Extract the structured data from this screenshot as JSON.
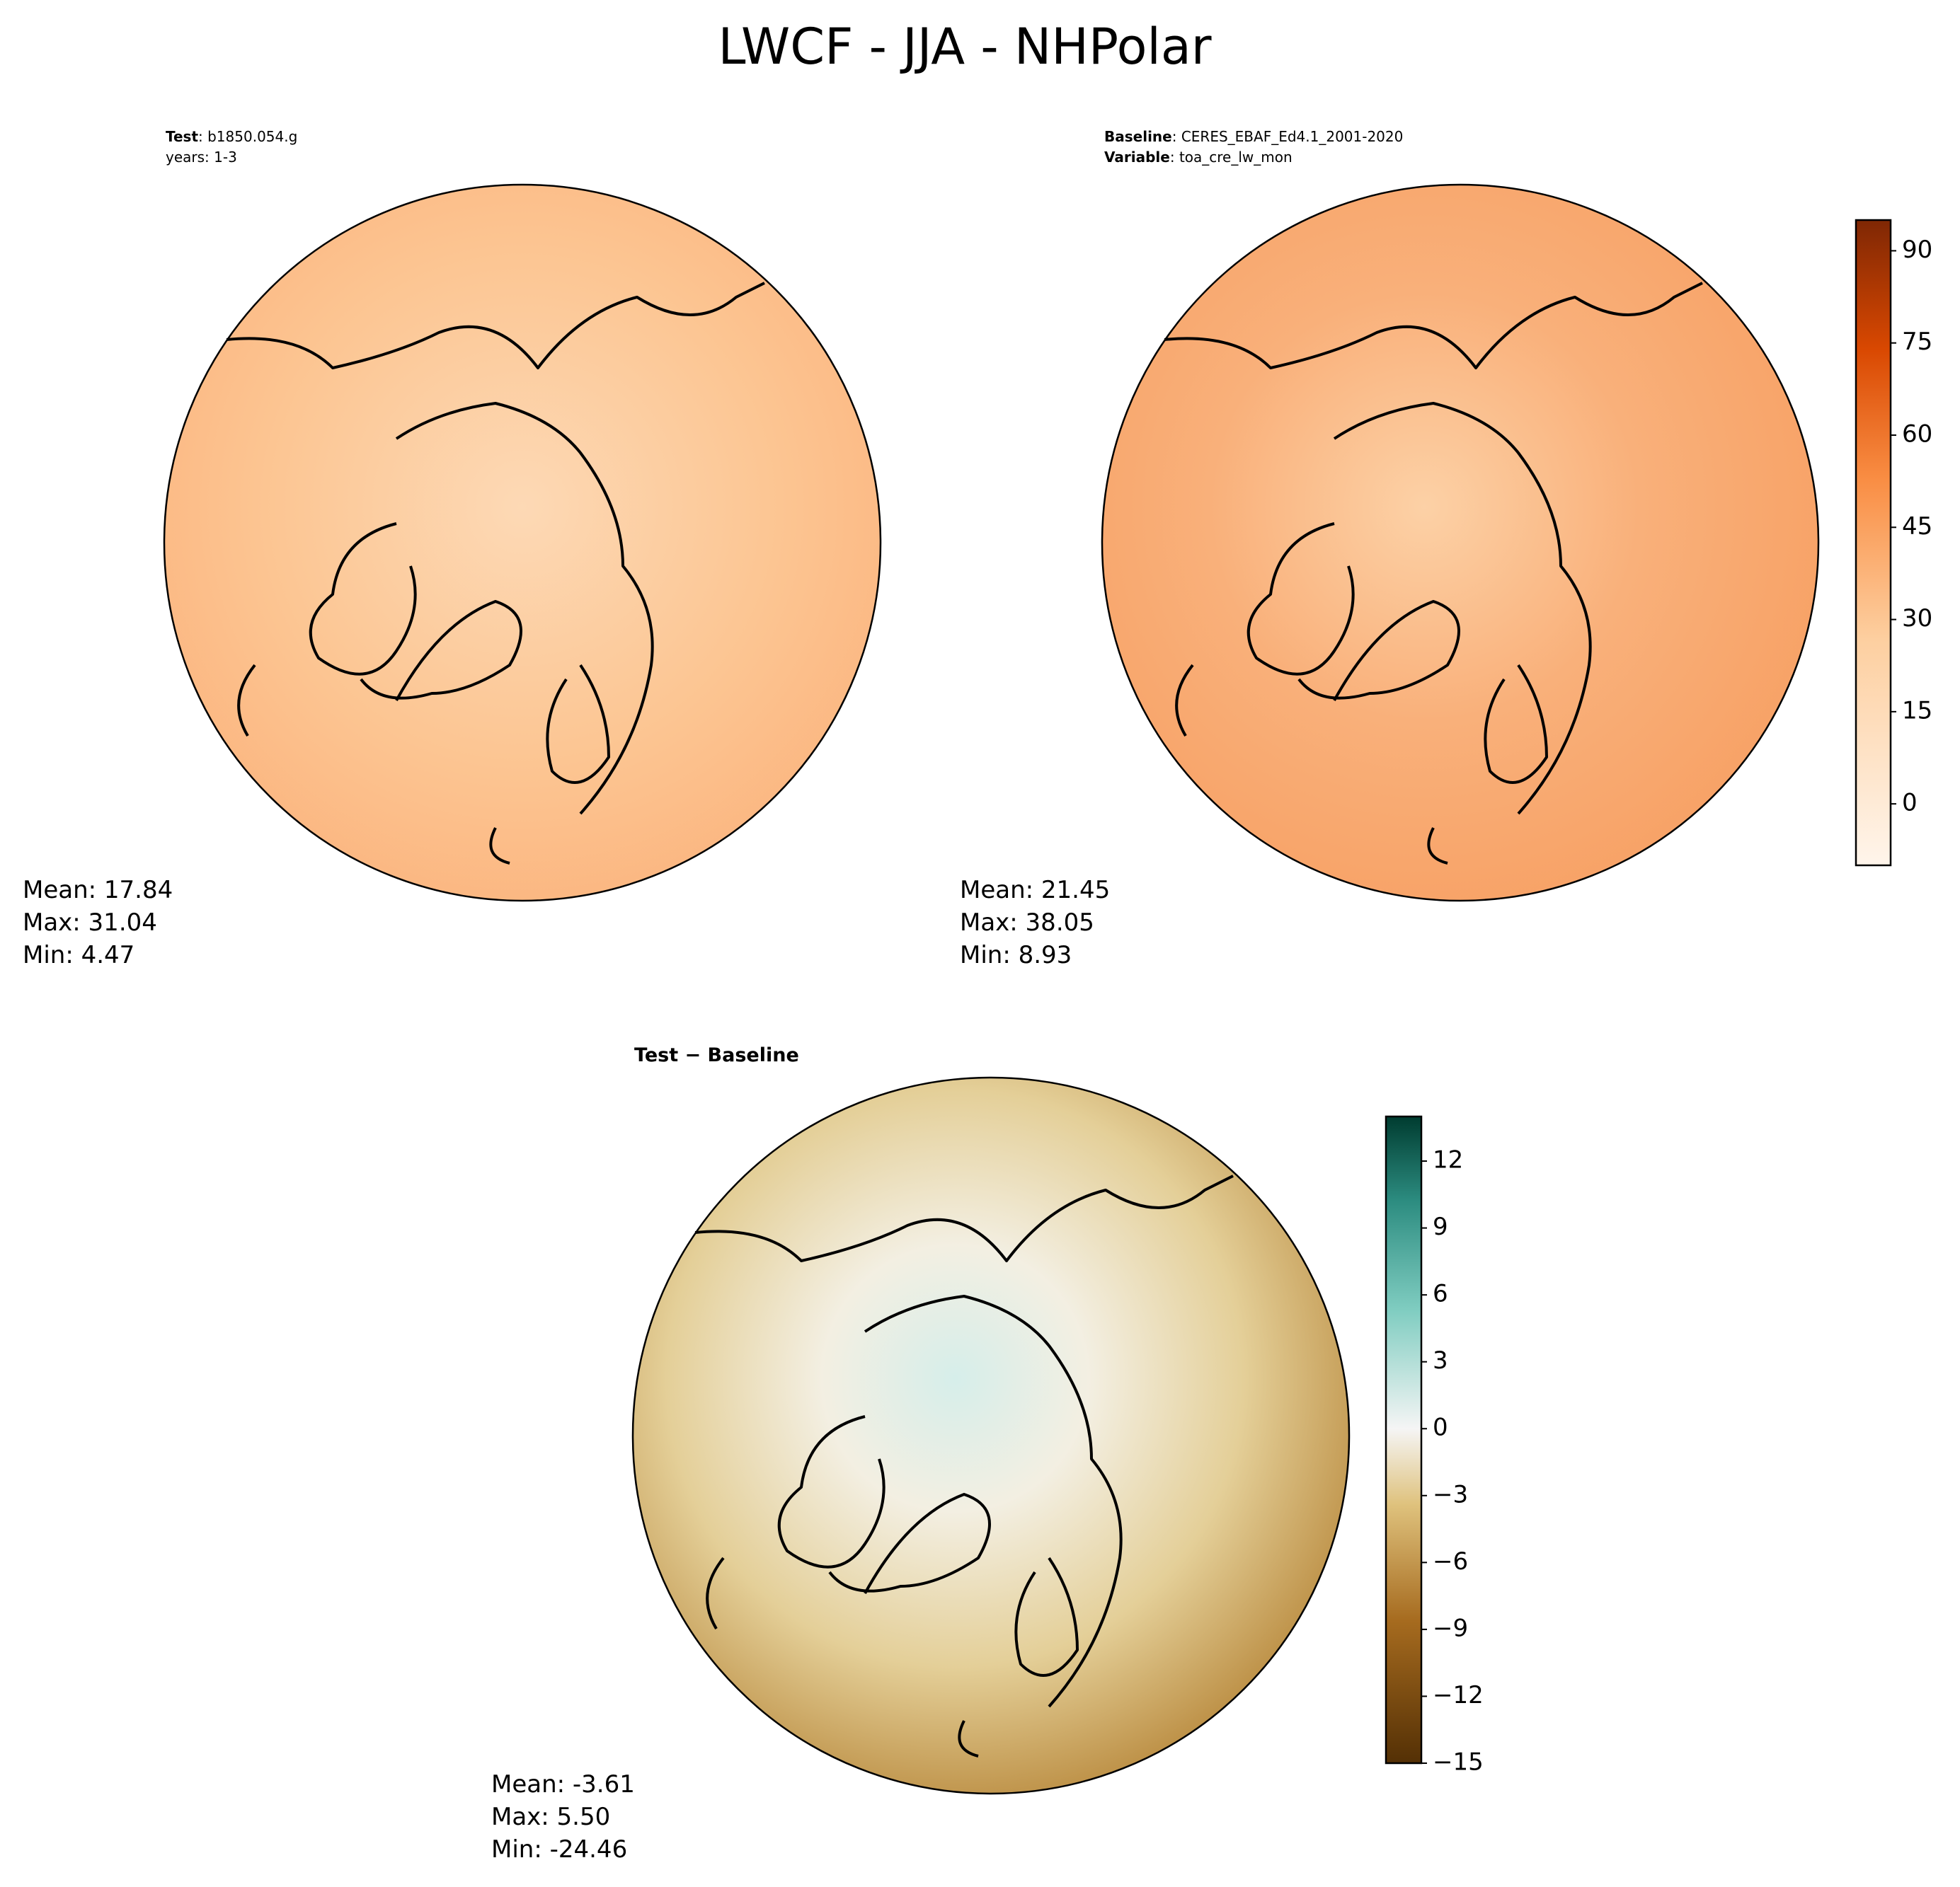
{
  "title": "LWCF - JJA - NHPolar",
  "panels": [
    {
      "header": [
        {
          "key": "Test",
          "text": ": b1850.054.g"
        },
        {
          "key": null,
          "text": "years: 1-3"
        }
      ],
      "stats": [
        "Mean: 17.84",
        "Max: 31.04",
        "Min:  4.47"
      ]
    },
    {
      "header": [
        {
          "key": "Baseline",
          "text": ": CERES_EBAF_Ed4.1_2001-2020"
        },
        {
          "key": "Variable",
          "text": ": toa_cre_lw_mon"
        }
      ],
      "stats": [
        "Mean: 21.45",
        "Max: 38.05",
        "Min:  8.93"
      ]
    },
    {
      "header": [
        {
          "key": "Test − Baseline",
          "text": null
        }
      ],
      "stats": [
        "Mean: -3.61",
        "Max:  5.50",
        "Min: -24.46"
      ]
    }
  ],
  "colorbars": [
    {
      "lim": [
        -10,
        95
      ],
      "ticks": [
        0,
        15,
        30,
        45,
        60,
        75,
        90
      ]
    },
    {
      "lim": [
        -15,
        14
      ],
      "ticks": [
        {
          "value": -15,
          "label": "−15"
        },
        {
          "value": -12,
          "label": "−12"
        },
        {
          "value": -9,
          "label": "−9"
        },
        {
          "value": -6,
          "label": "−6"
        },
        {
          "value": -3,
          "label": "−3"
        },
        0,
        3,
        6,
        9,
        12
      ]
    }
  ]
}
